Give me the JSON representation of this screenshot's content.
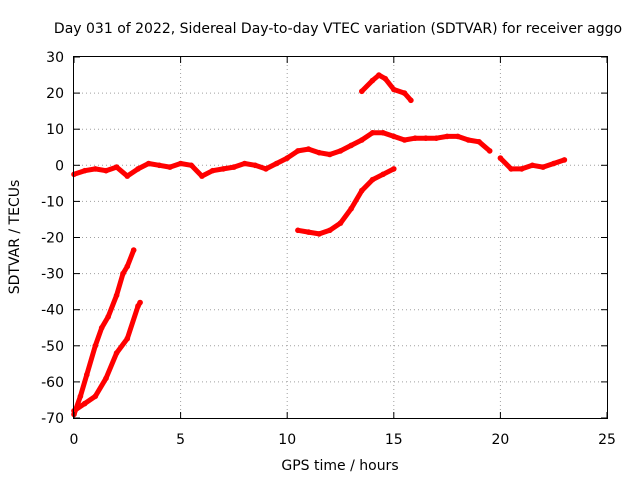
{
  "chart_data": {
    "type": "line",
    "title": "Day 031 of 2022, Sidereal Day-to-day VTEC variation (SDTVAR) for receiver aggo",
    "xlabel": "GPS time / hours",
    "ylabel": "SDTVAR / TECUs",
    "xlim": [
      0,
      25
    ],
    "ylim": [
      -70,
      30
    ],
    "x_ticks": [
      0,
      5,
      10,
      15,
      20,
      25
    ],
    "x_tick_labels": [
      "0",
      "5",
      "10",
      "15",
      "20",
      "25"
    ],
    "y_ticks": [
      30,
      20,
      10,
      0,
      -10,
      -20,
      -30,
      -40,
      -50,
      -60,
      -70
    ],
    "y_tick_labels": [
      "30",
      "20",
      "10",
      "0",
      "-10",
      "-20",
      "-30",
      "-40",
      "-50",
      "-60",
      "-70"
    ],
    "grid": true,
    "series_color": "#ff0000",
    "series": [
      {
        "name": "main trace",
        "x": [
          0,
          0.5,
          1,
          1.5,
          2,
          2.5,
          3,
          3.5,
          4,
          4.5,
          5,
          5.5,
          6,
          6.5,
          7,
          7.5,
          8,
          8.5,
          9,
          9.5,
          10,
          10.5,
          11,
          11.5,
          12,
          12.5,
          13,
          13.5,
          14,
          14.5,
          15,
          15.5,
          16,
          16.5,
          17,
          17.5,
          18,
          18.5,
          19,
          19.5
        ],
        "y": [
          -2.5,
          -1.5,
          -1,
          -1.5,
          -0.5,
          -3,
          -1,
          0.5,
          0,
          -0.5,
          0.5,
          0,
          -3,
          -1.5,
          -1,
          -0.5,
          0.5,
          0,
          -1,
          0.5,
          2,
          4,
          4.5,
          3.5,
          3,
          4,
          5.5,
          7,
          9,
          9,
          8,
          7,
          7.5,
          7.5,
          7.5,
          8,
          8,
          7,
          6.5,
          4
        ]
      },
      {
        "name": "late segment",
        "x": [
          20,
          20.5,
          21,
          21.5,
          22,
          22.5,
          23
        ],
        "y": [
          2,
          -1,
          -1,
          0,
          -0.5,
          0.5,
          1.5
        ]
      },
      {
        "name": "high arc",
        "x": [
          13.5,
          14,
          14.3,
          14.6,
          15,
          15.5,
          15.8
        ],
        "y": [
          20.5,
          23.5,
          25,
          24,
          21,
          20,
          18
        ]
      },
      {
        "name": "rising arc",
        "x": [
          10.5,
          11,
          11.5,
          12,
          12.5,
          13,
          13.5,
          14,
          14.5,
          15
        ],
        "y": [
          -18,
          -18.5,
          -19,
          -18,
          -16,
          -12,
          -7,
          -4,
          -2.5,
          -1
        ]
      },
      {
        "name": "steep trace A",
        "x": [
          0,
          0.3,
          0.6,
          1,
          1.3,
          1.6,
          2,
          2.3,
          2.5,
          2.8
        ],
        "y": [
          -69,
          -64,
          -58,
          -50,
          -45,
          -42,
          -36,
          -30,
          -28,
          -23.5
        ]
      },
      {
        "name": "steep trace B",
        "x": [
          0,
          0.5,
          1,
          1.5,
          2,
          2.5,
          3,
          3.1
        ],
        "y": [
          -68,
          -66,
          -64,
          -59,
          -52,
          -48,
          -39,
          -38
        ]
      }
    ]
  }
}
